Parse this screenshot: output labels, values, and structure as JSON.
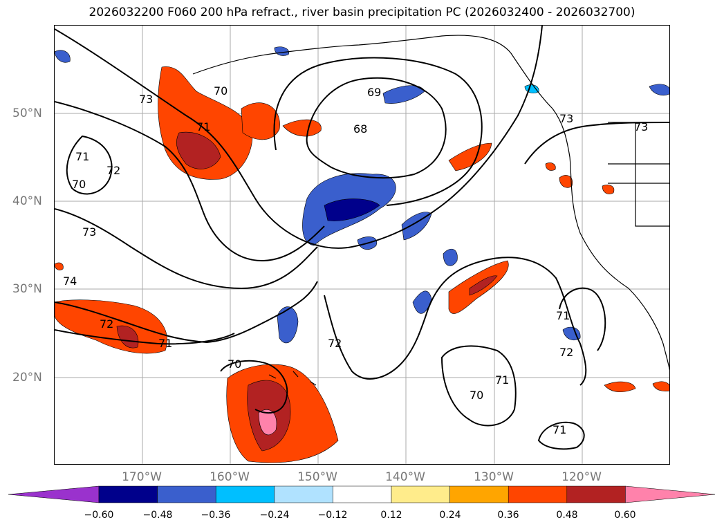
{
  "title": "2026032200 F060 200 hPa refract., river basin precipitation PC (2026032400 - 2026032700)",
  "lat_labels": [
    "50°N",
    "40°N",
    "30°N",
    "20°N"
  ],
  "lon_labels": [
    "170°W",
    "160°W",
    "150°W",
    "140°W",
    "130°W",
    "120°W"
  ],
  "contour_labels": [
    "73",
    "70",
    "71",
    "69",
    "68",
    "73",
    "73",
    "71",
    "72",
    "70",
    "73",
    "74",
    "72",
    "71",
    "70",
    "72",
    "71",
    "72",
    "71",
    "70",
    "71"
  ],
  "colorbar": {
    "ticks": [
      "−0.60",
      "−0.48",
      "−0.36",
      "−0.24",
      "−0.12",
      "0.12",
      "0.24",
      "0.36",
      "0.48",
      "0.60"
    ],
    "colors": [
      "#9a32cd",
      "#00008b",
      "#3a5fcd",
      "#00bfff",
      "#b0e2ff",
      "#ffffff",
      "#ffec8b",
      "#ffa500",
      "#ff4500",
      "#b22222",
      "#ff82ab"
    ]
  }
}
